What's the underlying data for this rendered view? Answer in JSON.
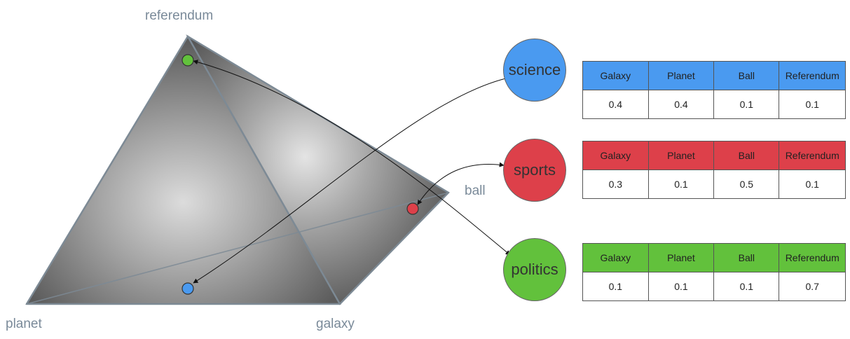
{
  "vertices": {
    "referendum": "referendum",
    "planet": "planet",
    "galaxy": "galaxy",
    "ball": "ball"
  },
  "topics": [
    {
      "name": "science",
      "color": "#4a9af0",
      "headers": [
        "Galaxy",
        "Planet",
        "Ball",
        "Referendum"
      ],
      "values": [
        "0.4",
        "0.4",
        "0.1",
        "0.1"
      ]
    },
    {
      "name": "sports",
      "color": "#dd404a",
      "headers": [
        "Galaxy",
        "Planet",
        "Ball",
        "Referendum"
      ],
      "values": [
        "0.3",
        "0.1",
        "0.5",
        "0.1"
      ]
    },
    {
      "name": "politics",
      "color": "#62c13c",
      "headers": [
        "Galaxy",
        "Planet",
        "Ball",
        "Referendum"
      ],
      "values": [
        "0.1",
        "0.1",
        "0.1",
        "0.7"
      ]
    }
  ],
  "points": [
    {
      "name": "politics-point",
      "color": "#62c13c"
    },
    {
      "name": "sports-point",
      "color": "#dd404a"
    },
    {
      "name": "science-point",
      "color": "#4a9af0"
    }
  ]
}
